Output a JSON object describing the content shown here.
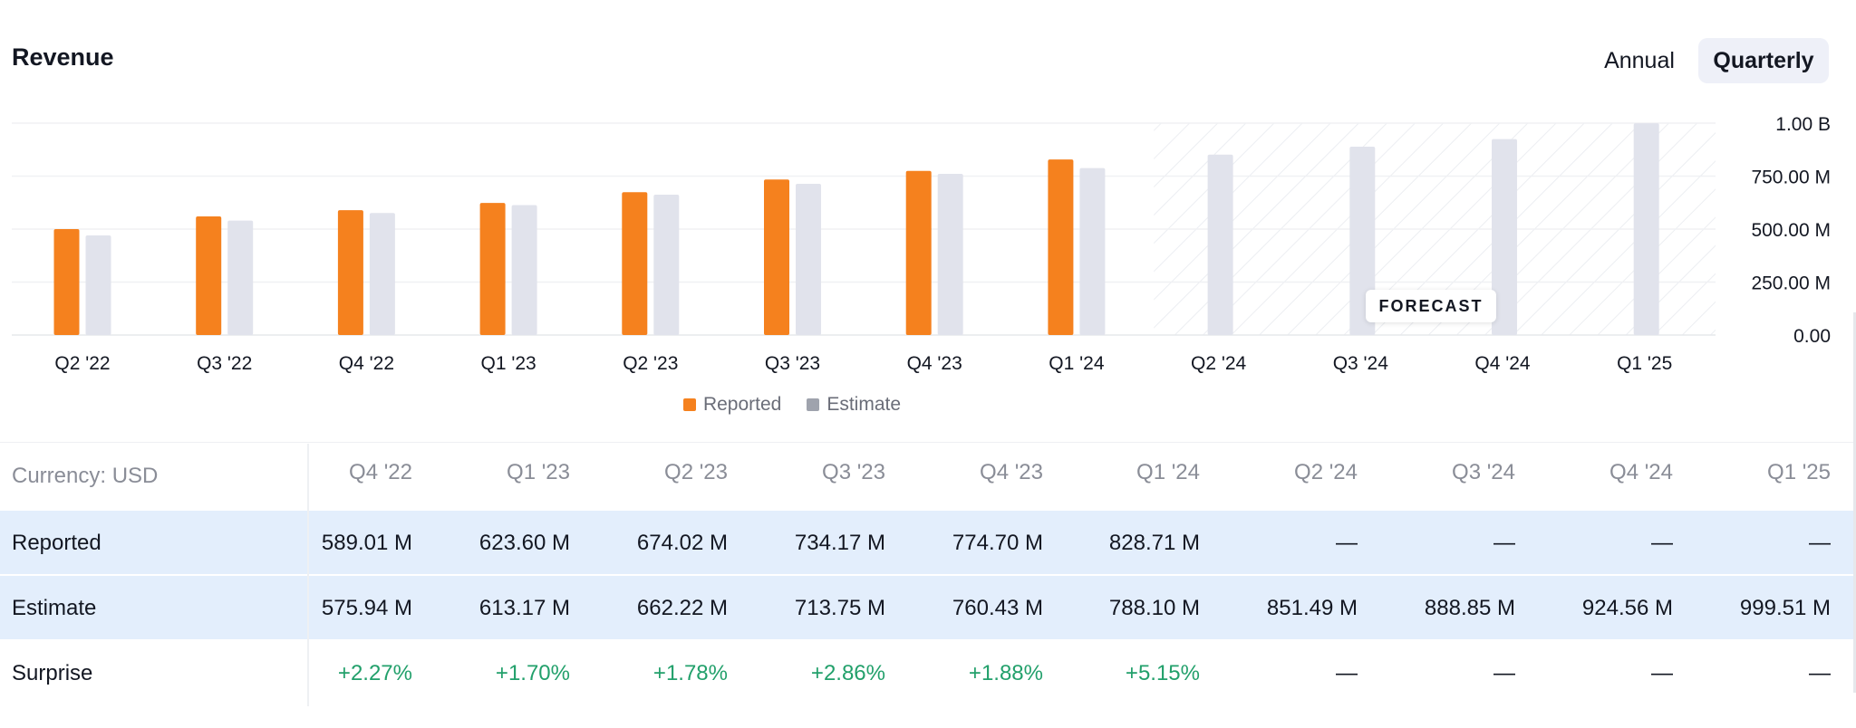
{
  "header": {
    "title": "Revenue",
    "toggle": {
      "annual": "Annual",
      "quarterly": "Quarterly",
      "active": "quarterly"
    }
  },
  "colors": {
    "reported": "#f5811e",
    "estimate": "#e1e3ec",
    "grid": "#f0f1f4",
    "positive": "#22a06b",
    "row_highlight": "#e3eefc"
  },
  "chart_data": {
    "type": "bar",
    "categories": [
      "Q2 '22",
      "Q3 '22",
      "Q4 '22",
      "Q1 '23",
      "Q2 '23",
      "Q3 '23",
      "Q4 '23",
      "Q1 '24",
      "Q2 '24",
      "Q3 '24",
      "Q4 '24",
      "Q1 '25"
    ],
    "series": [
      {
        "name": "Reported",
        "values": [
          500,
          560,
          589.01,
          623.6,
          674.02,
          734.17,
          774.7,
          828.71,
          null,
          null,
          null,
          null
        ]
      },
      {
        "name": "Estimate",
        "values": [
          470,
          540,
          575.94,
          613.17,
          662.22,
          713.75,
          760.43,
          788.1,
          851.49,
          888.85,
          924.56,
          999.51
        ]
      }
    ],
    "y_ticks": [
      "1.00 B",
      "750.00 M",
      "500.00 M",
      "250.00 M",
      "0.00"
    ],
    "ylim": [
      0,
      1000
    ],
    "forecast_start_category": "Q2 '24",
    "forecast_label": "FORECAST",
    "legend": [
      "Reported",
      "Estimate"
    ]
  },
  "table": {
    "currency_label": "Currency: USD",
    "columns": [
      "Q4 '22",
      "Q1 '23",
      "Q2 '23",
      "Q3 '23",
      "Q4 '23",
      "Q1 '24",
      "Q2 '24",
      "Q3 '24",
      "Q4 '24",
      "Q1 '25"
    ],
    "rows": [
      {
        "label": "Reported",
        "values": [
          "589.01 M",
          "623.60 M",
          "674.02 M",
          "734.17 M",
          "774.70 M",
          "828.71 M",
          "—",
          "—",
          "—",
          "—"
        ]
      },
      {
        "label": "Estimate",
        "values": [
          "575.94 M",
          "613.17 M",
          "662.22 M",
          "713.75 M",
          "760.43 M",
          "788.10 M",
          "851.49 M",
          "888.85 M",
          "924.56 M",
          "999.51 M"
        ]
      },
      {
        "label": "Surprise",
        "values": [
          "+2.27%",
          "+1.70%",
          "+1.78%",
          "+2.86%",
          "+1.88%",
          "+5.15%",
          "—",
          "—",
          "—",
          "—"
        ]
      }
    ]
  }
}
